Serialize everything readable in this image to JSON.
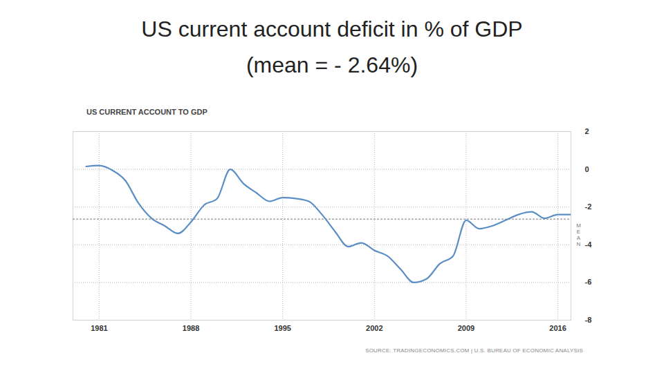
{
  "header": {
    "title": "US current account deficit in % of GDP",
    "subtitle": "(mean = - 2.64%)"
  },
  "chart_data": {
    "type": "line",
    "title": "US CURRENT ACCOUNT TO GDP",
    "source": "SOURCE: TRADINGECONOMICS.COM | U.S. BUREAU OF ECONOMIC ANALYSIS",
    "x": [
      1980,
      1981,
      1982,
      1983,
      1984,
      1985,
      1986,
      1987,
      1988,
      1989,
      1990,
      1991,
      1992,
      1993,
      1994,
      1995,
      1996,
      1997,
      1998,
      1999,
      2000,
      2001,
      2002,
      2003,
      2004,
      2005,
      2006,
      2007,
      2008,
      2009,
      2010,
      2011,
      2012,
      2013,
      2014,
      2015,
      2016,
      2017
    ],
    "values": [
      0.15,
      0.2,
      -0.05,
      -0.6,
      -1.8,
      -2.6,
      -3.0,
      -3.4,
      -2.8,
      -1.9,
      -1.55,
      0.0,
      -0.75,
      -1.25,
      -1.7,
      -1.5,
      -1.55,
      -1.7,
      -2.4,
      -3.3,
      -4.1,
      -3.9,
      -4.3,
      -4.6,
      -5.3,
      -6.0,
      -5.8,
      -5.0,
      -4.6,
      -2.7,
      -3.15,
      -3.0,
      -2.7,
      -2.4,
      -2.25,
      -2.6,
      -2.4,
      -2.4
    ],
    "color": "#5b8ec4",
    "xlim": [
      1979,
      2017
    ],
    "xticks": [
      1981,
      1988,
      1995,
      2002,
      2009,
      2016
    ],
    "ylim": [
      -8,
      2
    ],
    "yticks": [
      2,
      0,
      -2,
      -4,
      -6,
      -8
    ],
    "grid": true,
    "mean": {
      "value": -2.64,
      "label": "MEAN"
    }
  }
}
